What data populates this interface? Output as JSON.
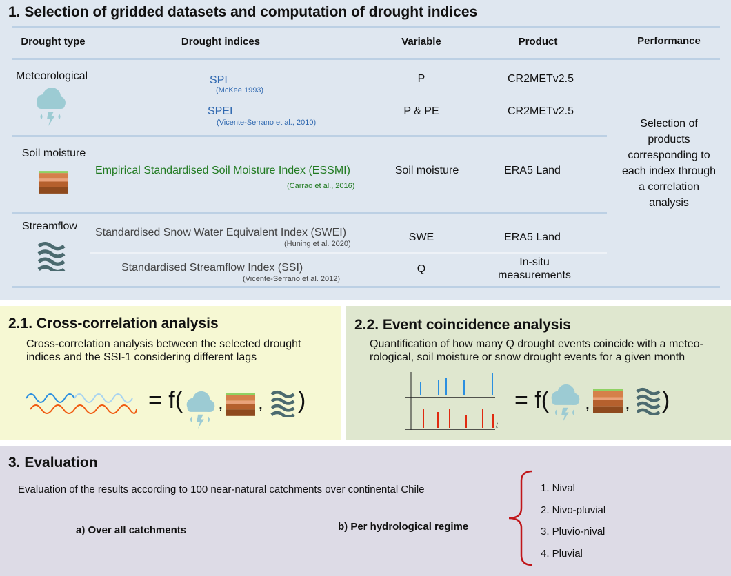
{
  "section1": {
    "title": "1. Selection of gridded datasets and computation of drought indices",
    "headers": [
      "Drought type",
      "Drought indices",
      "Variable",
      "Product",
      "Performance"
    ],
    "types": [
      "Meteorological",
      "Soil moisture",
      "Streamflow"
    ],
    "rows": [
      {
        "index": "SPI",
        "ref": "(McKee 1993)",
        "variable": "P",
        "product": "CR2METv2.5"
      },
      {
        "index": "SPEI",
        "ref": "(Vicente-Serrano et al., 2010)",
        "variable": "P & PE",
        "product": "CR2METv2.5"
      },
      {
        "index": "Empirical Standardised Soil Moisture Index (ESSMI)",
        "ref": "(Carrao et al., 2016)",
        "variable": "Soil moisture",
        "product": "ERA5 Land"
      },
      {
        "index": "Standardised Snow Water Equivalent Index (SWEI)",
        "ref": "(Huning et al. 2020)",
        "variable": "SWE",
        "product": "ERA5 Land"
      },
      {
        "index": "Standardised Streamflow Index (SSI)",
        "ref": "(Vicente-Serrano et al. 2012)",
        "variable": "Q",
        "product": "In-situ measurements"
      }
    ],
    "performance": "Selection of products corresponding to each index through a correlation analysis"
  },
  "section21": {
    "title": "2.1. Cross-correlation analysis",
    "text": "Cross-correlation analysis between the selected drought indices and the SSI-1 considering different lags",
    "eq": "= f(",
    "close": ")"
  },
  "section22": {
    "title": "2.2. Event coincidence analysis",
    "text": "Quantification of how many Q drought events coincide with a meteo-rological, soil moisture or snow drought events for a given month",
    "axis_label": "t",
    "eq": "= f(",
    "close": ")"
  },
  "section3": {
    "title": "3. Evaluation",
    "text": "Evaluation of the results according to 100 near-natural catchments over continental Chile",
    "a": "a) Over all catchments",
    "b": "b) Per hydrological regime",
    "regimes": [
      "1. Nival",
      "2. Nivo-pluvial",
      "3. Pluvio-nival",
      "4. Pluvial"
    ]
  },
  "icons": [
    "cloud-rain-lightning-icon",
    "soil-layers-icon",
    "water-waves-icon"
  ],
  "colors": {
    "blue_text": "#2f68b0",
    "green_text": "#207a20",
    "brace": "#c0161a"
  }
}
